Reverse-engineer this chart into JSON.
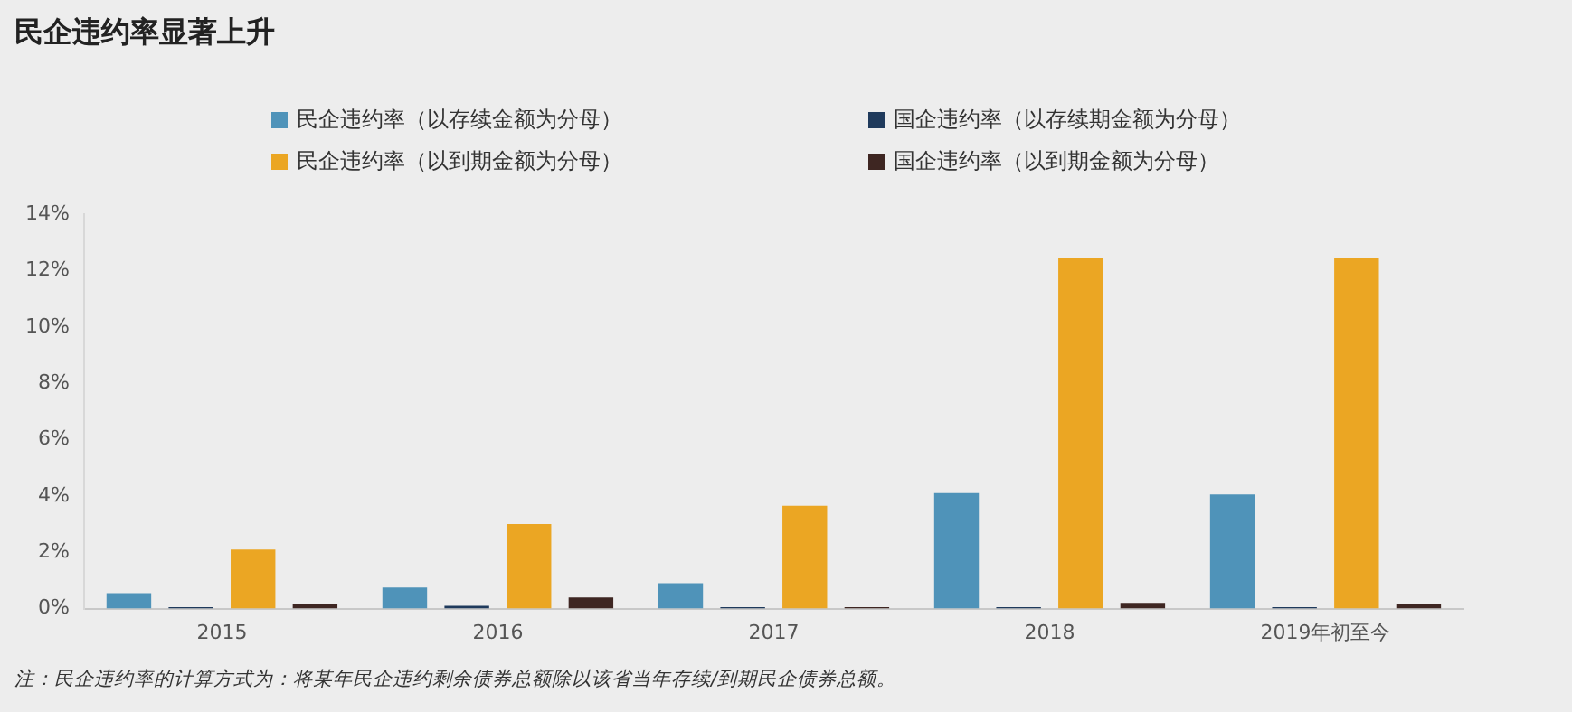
{
  "chart_data": {
    "type": "bar",
    "title": "民企违约率显著上升",
    "categories": [
      "2015",
      "2016",
      "2017",
      "2018",
      "2019年初至今"
    ],
    "series": [
      {
        "name": "民企违约率（以存续金额为分母）",
        "color": "#4f93b9",
        "values": [
          0.55,
          0.75,
          0.9,
          4.1,
          4.05
        ]
      },
      {
        "name": "国企违约率（以存续期金额为分母）",
        "color": "#1f3a5c",
        "values": [
          0.05,
          0.1,
          0.05,
          0.05,
          0.05
        ]
      },
      {
        "name": "民企违约率（以到期金额为分母）",
        "color": "#eba623",
        "values": [
          2.1,
          3.0,
          3.65,
          12.45,
          12.45
        ]
      },
      {
        "name": "国企违约率（以到期金额为分母）",
        "color": "#3e2622",
        "values": [
          0.15,
          0.4,
          0.05,
          0.2,
          0.15
        ]
      }
    ],
    "ylim": [
      0,
      14
    ],
    "yticks": [
      {
        "value": 0,
        "label": "0%"
      },
      {
        "value": 2,
        "label": "2%"
      },
      {
        "value": 4,
        "label": "4%"
      },
      {
        "value": 6,
        "label": "6%"
      },
      {
        "value": 8,
        "label": "8%"
      },
      {
        "value": 10,
        "label": "10%"
      },
      {
        "value": 12,
        "label": "12%"
      },
      {
        "value": 14,
        "label": "14%"
      }
    ],
    "grid": false,
    "legend": "top",
    "annotations": [
      "注：民企违约率的计算方式为：将某年民企违约剩余债券总额除以该省当年存续/到期民企债券总额。"
    ]
  }
}
